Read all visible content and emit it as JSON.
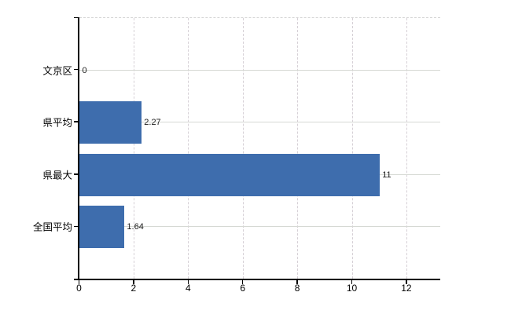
{
  "chart_data": {
    "type": "bar",
    "orientation": "horizontal",
    "title": "",
    "xlabel": "",
    "ylabel": "",
    "categories": [
      "文京区",
      "県平均",
      "県最大",
      "全国平均"
    ],
    "values": [
      0,
      2.27,
      11,
      1.64
    ],
    "value_labels": [
      "0",
      "2.27",
      "11",
      "1.64"
    ],
    "xticks": [
      0,
      2,
      4,
      6,
      8,
      10,
      12
    ],
    "xtick_labels": [
      "0",
      "2",
      "4",
      "6",
      "8",
      "10",
      "12"
    ],
    "xlim": [
      0,
      13.23
    ],
    "bar_color": "#3e6dad",
    "grid": true,
    "gridline_color": "#d6d6d6",
    "axis_color": "#000000",
    "legend": false,
    "background_color": "#ffffff"
  }
}
